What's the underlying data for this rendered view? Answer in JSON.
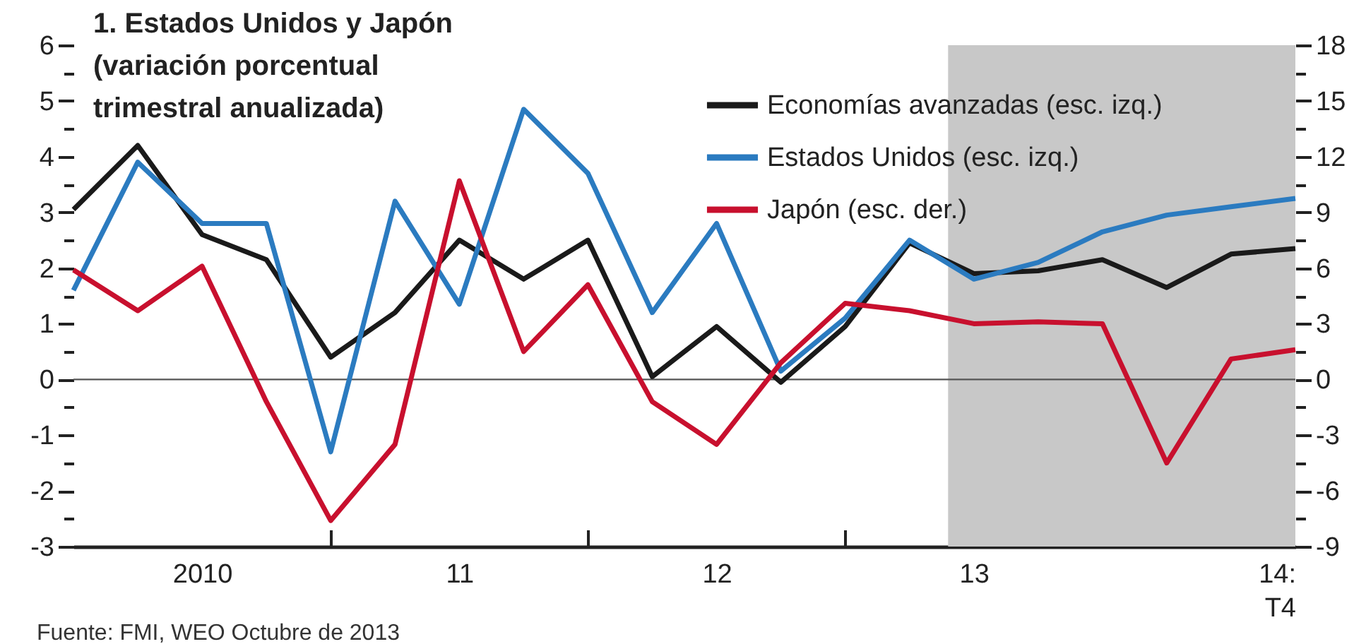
{
  "chart_data": {
    "type": "line",
    "title": "1. Estados Unidos y Japón\n(variación porcentual\ntrimestral anualizada)",
    "x": [
      2009.5,
      2009.75,
      2010,
      2010.25,
      2010.5,
      2010.75,
      2011,
      2011.25,
      2011.5,
      2011.75,
      2012,
      2012.25,
      2012.5,
      2012.75,
      2013,
      2013.25,
      2013.5,
      2013.75,
      2014,
      2014.25
    ],
    "series": [
      {
        "name": "Economías avanzadas (esc. izq.)",
        "color": "#1a1a1a",
        "values": [
          3.05,
          4.2,
          2.6,
          2.15,
          0.4,
          1.2,
          2.5,
          1.8,
          2.5,
          0.05,
          0.95,
          -0.05,
          0.95,
          2.45,
          1.9,
          1.95,
          2.15,
          1.65,
          2.25,
          2.35
        ]
      },
      {
        "name": "Estados Unidos (esc. izq.)",
        "color": "#2b7bc0",
        "values": [
          1.6,
          3.9,
          2.8,
          2.8,
          -1.3,
          3.2,
          1.35,
          4.85,
          3.7,
          1.2,
          2.8,
          0.15,
          1.1,
          2.5,
          1.8,
          2.1,
          2.65,
          2.95,
          3.1,
          3.25
        ]
      },
      {
        "name": "Japón (esc. der.)",
        "color": "#c8102e",
        "axis": "y2",
        "values": [
          5.9,
          3.7,
          6.1,
          -1.2,
          -7.6,
          -3.5,
          10.7,
          1.5,
          5.1,
          -1.2,
          -3.5,
          0.9,
          4.1,
          3.7,
          3,
          3.1,
          3,
          -4.5,
          1.1,
          1.6
        ]
      }
    ],
    "xlim": [
      2009.5,
      2014.25
    ],
    "xticks": [
      {
        "value": 2010,
        "label": "2010"
      },
      {
        "value": 2010.5,
        "label": null
      },
      {
        "value": 2011,
        "label": "11"
      },
      {
        "value": 2011.5,
        "label": null
      },
      {
        "value": 2012,
        "label": "12"
      },
      {
        "value": 2012.5,
        "label": null
      },
      {
        "value": 2013,
        "label": "13"
      },
      {
        "value": 2013.5,
        "label": null
      },
      {
        "value": 2014.25,
        "label": "14:\nT4"
      }
    ],
    "ylim": [
      -3,
      6
    ],
    "yticks": [
      -3,
      {
        "value": -2.5,
        "label": null
      },
      -2,
      {
        "value": -1.5,
        "label": null
      },
      -1,
      {
        "value": -0.5,
        "label": null
      },
      0,
      {
        "value": 0.5,
        "label": null
      },
      1,
      {
        "value": 1.5,
        "label": null
      },
      2,
      {
        "value": 2.5,
        "label": null
      },
      3,
      {
        "value": 3.5,
        "label": null
      },
      4,
      {
        "value": 4.5,
        "label": null
      },
      5,
      {
        "value": 5.5,
        "label": null
      },
      6
    ],
    "y2lim": [
      -9,
      18
    ],
    "y2ticks": [
      -9,
      {
        "value": -7.5,
        "label": null
      },
      -6,
      {
        "value": -4.5,
        "label": null
      },
      -3,
      {
        "value": -1.5,
        "label": null
      },
      0,
      {
        "value": 1.5,
        "label": null
      },
      3,
      {
        "value": 4.5,
        "label": null
      },
      6,
      {
        "value": 7.5,
        "label": null
      },
      9,
      {
        "value": 10.5,
        "label": null
      },
      12,
      {
        "value": 13.5,
        "label": null
      },
      15,
      {
        "value": 16.5,
        "label": null
      },
      18
    ],
    "ref_lines": [
      {
        "axis": "y",
        "value": 0,
        "color": "#555555"
      }
    ],
    "bands": [
      {
        "axis": "x",
        "from": 2012.9,
        "to": 2014.25,
        "color": "#c8c8c8"
      }
    ],
    "legend": "top right",
    "annotations": [
      "Fuente:  FMI,  WEO Octubre de 2013"
    ]
  }
}
